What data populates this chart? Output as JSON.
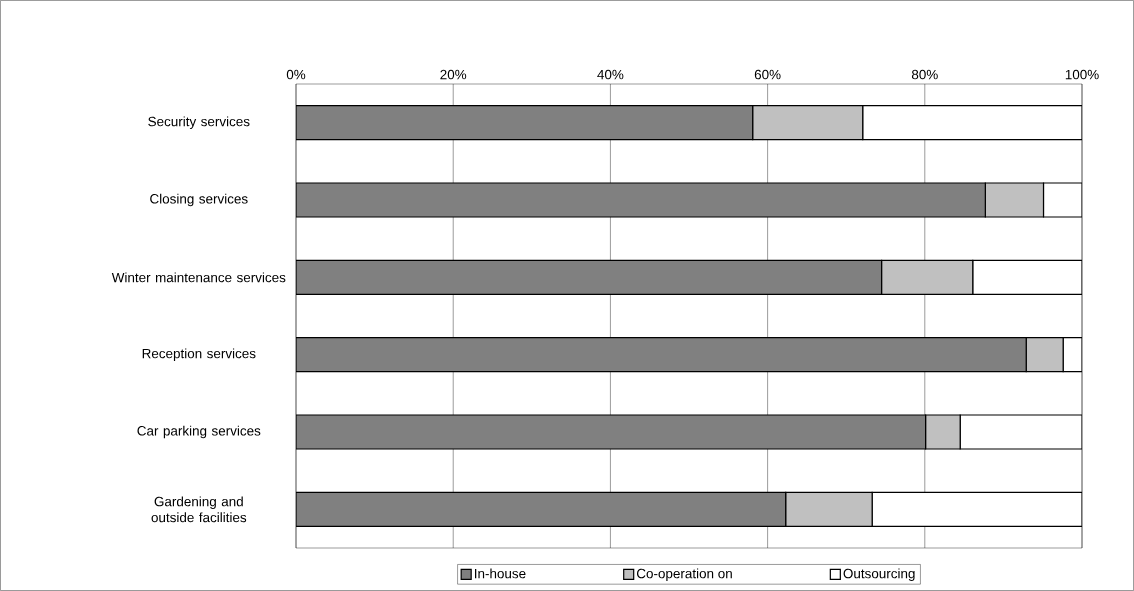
{
  "chart_data": {
    "type": "bar",
    "orientation": "horizontal",
    "stacked": true,
    "categories": [
      "Security services",
      "Closing services",
      "Winter maintenance services",
      "Reception services",
      "Car parking services",
      "Gardening and outside facilities"
    ],
    "series": [
      {
        "name": "In-house",
        "color": "#808080",
        "values": [
          58.1,
          87.7,
          74.5,
          92.9,
          80.1,
          62.3
        ]
      },
      {
        "name": "Co-operation on",
        "color": "#c0c0c0",
        "values": [
          14.0,
          7.4,
          11.6,
          4.7,
          4.4,
          11.0
        ]
      },
      {
        "name": "Outsourcing",
        "color": "#ffffff",
        "values": [
          27.9,
          4.9,
          13.9,
          2.4,
          15.5,
          26.7
        ]
      }
    ],
    "xlim": [
      0,
      100
    ],
    "xticks": [
      {
        "value": 0,
        "label": "0%"
      },
      {
        "value": 20,
        "label": "20%"
      },
      {
        "value": 40,
        "label": "40%"
      },
      {
        "value": 60,
        "label": "60%"
      },
      {
        "value": 80,
        "label": "80%"
      },
      {
        "value": 100,
        "label": "100%"
      }
    ],
    "grid": "x",
    "legend": "bottom"
  }
}
